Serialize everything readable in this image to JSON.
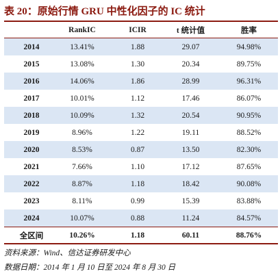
{
  "title": "表 20：原始行情 GRU 中性化因子的 IC 统计",
  "columns": [
    "",
    "RankIC",
    "ICIR",
    "t 统计值",
    "胜率"
  ],
  "rows": [
    [
      "2014",
      "13.41%",
      "1.88",
      "29.07",
      "94.98%"
    ],
    [
      "2015",
      "13.08%",
      "1.30",
      "20.34",
      "89.75%"
    ],
    [
      "2016",
      "14.06%",
      "1.86",
      "28.99",
      "96.31%"
    ],
    [
      "2017",
      "10.01%",
      "1.12",
      "17.46",
      "86.07%"
    ],
    [
      "2018",
      "10.09%",
      "1.32",
      "20.54",
      "90.95%"
    ],
    [
      "2019",
      "8.96%",
      "1.22",
      "19.11",
      "88.52%"
    ],
    [
      "2020",
      "8.53%",
      "0.87",
      "13.50",
      "82.30%"
    ],
    [
      "2021",
      "7.66%",
      "1.10",
      "17.12",
      "87.65%"
    ],
    [
      "2022",
      "8.87%",
      "1.18",
      "18.42",
      "90.08%"
    ],
    [
      "2023",
      "8.11%",
      "0.99",
      "15.39",
      "83.88%"
    ],
    [
      "2024",
      "10.07%",
      "0.88",
      "11.24",
      "84.57%"
    ]
  ],
  "total": [
    "全区间",
    "10.26%",
    "1.18",
    "60.11",
    "88.76%"
  ],
  "source": "资料来源：Wind、信达证券研发中心",
  "date_range": "数据日期：2014 年 1 月 10 日至 2024 年 8 月 30 日",
  "colors": {
    "accent": "#8b1a10",
    "stripe": "#dbe6f4"
  }
}
